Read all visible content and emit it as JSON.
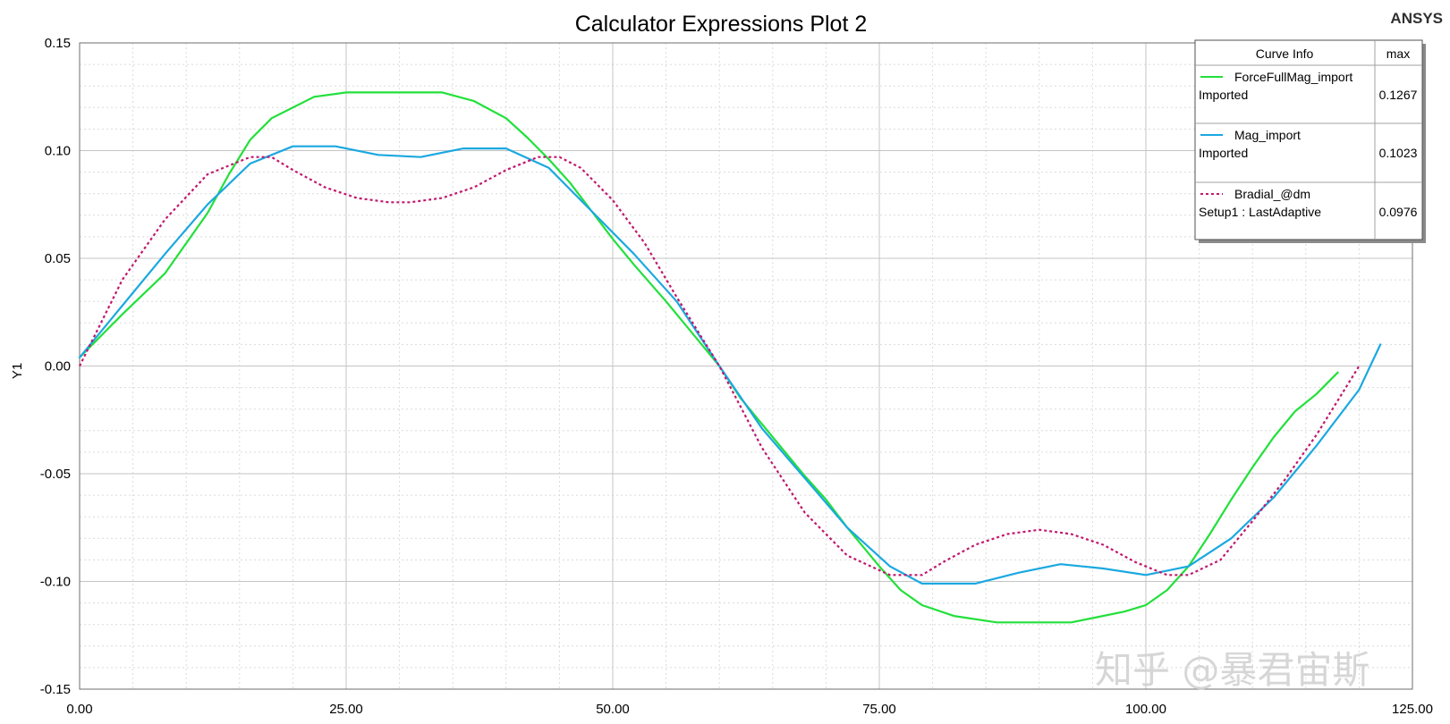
{
  "brand": "ANSYS",
  "watermark": "知乎 @暴君宙斯",
  "chart_data": {
    "type": "line",
    "title": "Calculator Expressions Plot 2",
    "xlabel": "",
    "ylabel": "Y1",
    "xlim": [
      0,
      125
    ],
    "ylim": [
      -0.15,
      0.15
    ],
    "x_ticks": [
      "0.00",
      "25.00",
      "50.00",
      "75.00",
      "100.00",
      "125.00"
    ],
    "y_ticks": [
      "0.15",
      "0.10",
      "0.05",
      "0.00",
      "-0.05",
      "-0.10",
      "-0.15"
    ],
    "grid": true,
    "legend": {
      "position": "top-right",
      "header_name": "Curve Info",
      "header_stat": "max"
    },
    "series": [
      {
        "name": "ForceFullMag_import",
        "subtitle": "Imported",
        "max": "0.1267",
        "color": "#22e03a",
        "dash": "solid",
        "points": [
          [
            0,
            0.004
          ],
          [
            4,
            0.024
          ],
          [
            8,
            0.043
          ],
          [
            12,
            0.071
          ],
          [
            14,
            0.089
          ],
          [
            16,
            0.105
          ],
          [
            18,
            0.115
          ],
          [
            22,
            0.125
          ],
          [
            25,
            0.127
          ],
          [
            30,
            0.127
          ],
          [
            34,
            0.127
          ],
          [
            37,
            0.123
          ],
          [
            40,
            0.115
          ],
          [
            42,
            0.106
          ],
          [
            44,
            0.096
          ],
          [
            46,
            0.085
          ],
          [
            48,
            0.072
          ],
          [
            50,
            0.059
          ],
          [
            52,
            0.047
          ],
          [
            55,
            0.03
          ],
          [
            58,
            0.012
          ],
          [
            60,
            0.0
          ],
          [
            62,
            -0.015
          ],
          [
            65,
            -0.033
          ],
          [
            68,
            -0.051
          ],
          [
            70,
            -0.062
          ],
          [
            72,
            -0.075
          ],
          [
            75,
            -0.093
          ],
          [
            77,
            -0.104
          ],
          [
            79,
            -0.111
          ],
          [
            82,
            -0.116
          ],
          [
            86,
            -0.119
          ],
          [
            90,
            -0.119
          ],
          [
            93,
            -0.119
          ],
          [
            95,
            -0.117
          ],
          [
            98,
            -0.114
          ],
          [
            100,
            -0.111
          ],
          [
            102,
            -0.104
          ],
          [
            104,
            -0.093
          ],
          [
            106,
            -0.078
          ],
          [
            108,
            -0.062
          ],
          [
            110,
            -0.047
          ],
          [
            112,
            -0.033
          ],
          [
            114,
            -0.021
          ],
          [
            116,
            -0.013
          ],
          [
            118,
            -0.003
          ]
        ]
      },
      {
        "name": "Mag_import",
        "subtitle": "Imported",
        "max": "0.1023",
        "color": "#1ba8e0",
        "dash": "solid",
        "points": [
          [
            0,
            0.004
          ],
          [
            4,
            0.028
          ],
          [
            8,
            0.052
          ],
          [
            12,
            0.075
          ],
          [
            16,
            0.094
          ],
          [
            20,
            0.102
          ],
          [
            24,
            0.102
          ],
          [
            28,
            0.098
          ],
          [
            32,
            0.097
          ],
          [
            36,
            0.101
          ],
          [
            40,
            0.101
          ],
          [
            44,
            0.092
          ],
          [
            48,
            0.072
          ],
          [
            52,
            0.052
          ],
          [
            56,
            0.03
          ],
          [
            60,
            0.0
          ],
          [
            64,
            -0.029
          ],
          [
            68,
            -0.052
          ],
          [
            72,
            -0.075
          ],
          [
            76,
            -0.093
          ],
          [
            79,
            -0.101
          ],
          [
            84,
            -0.101
          ],
          [
            88,
            -0.096
          ],
          [
            92,
            -0.092
          ],
          [
            96,
            -0.094
          ],
          [
            100,
            -0.097
          ],
          [
            104,
            -0.093
          ],
          [
            108,
            -0.08
          ],
          [
            112,
            -0.061
          ],
          [
            116,
            -0.037
          ],
          [
            120,
            -0.011
          ],
          [
            122,
            0.01
          ]
        ]
      },
      {
        "name": "Bradial_@dm",
        "subtitle": "Setup1 : LastAdaptive",
        "max": "0.0976",
        "color": "#c0186e",
        "dash": "dotted",
        "points": [
          [
            0,
            0.0
          ],
          [
            4,
            0.04
          ],
          [
            8,
            0.068
          ],
          [
            12,
            0.089
          ],
          [
            16,
            0.097
          ],
          [
            18,
            0.097
          ],
          [
            20,
            0.091
          ],
          [
            23,
            0.083
          ],
          [
            26,
            0.078
          ],
          [
            29,
            0.076
          ],
          [
            31,
            0.076
          ],
          [
            34,
            0.078
          ],
          [
            37,
            0.083
          ],
          [
            40,
            0.091
          ],
          [
            43,
            0.097
          ],
          [
            45,
            0.097
          ],
          [
            47,
            0.092
          ],
          [
            50,
            0.077
          ],
          [
            53,
            0.057
          ],
          [
            56,
            0.032
          ],
          [
            60,
            0.0
          ],
          [
            64,
            -0.038
          ],
          [
            68,
            -0.068
          ],
          [
            72,
            -0.088
          ],
          [
            76,
            -0.097
          ],
          [
            79,
            -0.097
          ],
          [
            81,
            -0.091
          ],
          [
            84,
            -0.083
          ],
          [
            87,
            -0.078
          ],
          [
            90,
            -0.076
          ],
          [
            93,
            -0.078
          ],
          [
            96,
            -0.083
          ],
          [
            99,
            -0.091
          ],
          [
            102,
            -0.097
          ],
          [
            104,
            -0.097
          ],
          [
            107,
            -0.09
          ],
          [
            110,
            -0.072
          ],
          [
            113,
            -0.053
          ],
          [
            116,
            -0.032
          ],
          [
            119,
            -0.008
          ],
          [
            120,
            0.0
          ]
        ]
      }
    ]
  }
}
